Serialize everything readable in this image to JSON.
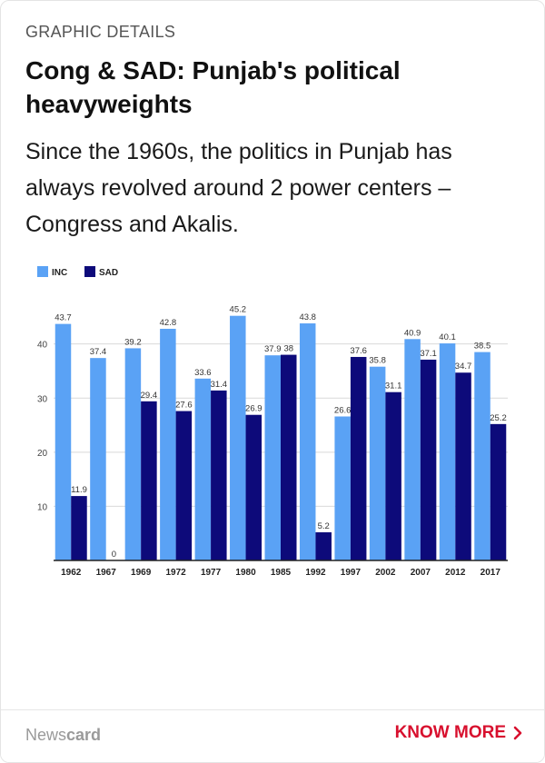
{
  "card": {
    "kicker": "GRAPHIC DETAILS",
    "headline": "Cong & SAD: Punjab's political heavyweights",
    "subhead": "Since the 1960s, the politics in Punjab has always revolved around 2 power centers – Congress and Akalis."
  },
  "footer": {
    "brand_light": "News",
    "brand_bold": "card",
    "cta_label": "KNOW MORE",
    "cta_icon": "chevron-right-icon",
    "cta_color": "#d8102e"
  },
  "chart_data": {
    "type": "bar",
    "categories": [
      "1962",
      "1967",
      "1969",
      "1972",
      "1977",
      "1980",
      "1985",
      "1992",
      "1997",
      "2002",
      "2007",
      "2012",
      "2017"
    ],
    "series": [
      {
        "name": "INC",
        "color": "#5aa2f5",
        "values": [
          43.7,
          37.4,
          39.2,
          42.8,
          33.6,
          45.2,
          37.9,
          43.8,
          26.6,
          35.8,
          40.9,
          40.1,
          38.5
        ]
      },
      {
        "name": "SAD",
        "color": "#0d0a7a",
        "values": [
          11.9,
          0,
          29.4,
          27.6,
          31.4,
          26.9,
          38,
          5.2,
          37.6,
          31.1,
          37.1,
          34.7,
          25.2
        ]
      }
    ],
    "yticks": [
      10,
      20,
      30,
      40
    ],
    "ylim": [
      0,
      48
    ],
    "grid": true,
    "legend": "top-left"
  }
}
